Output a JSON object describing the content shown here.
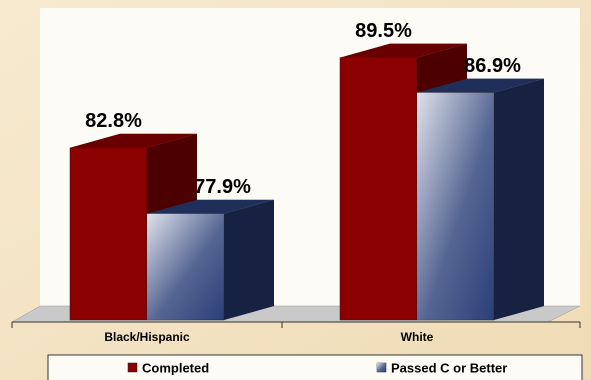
{
  "chart_data": {
    "type": "bar3d",
    "categories": [
      "Black/Hispanic",
      "White"
    ],
    "series": [
      {
        "name": "Completed",
        "color": "#8b0000",
        "values": [
          82.8,
          89.5
        ],
        "value_labels": [
          "82.8%",
          "89.5%"
        ]
      },
      {
        "name": "Passed C or Better",
        "color": "#2b3f78",
        "values": [
          77.9,
          86.9
        ],
        "value_labels": [
          "77.9%",
          "86.9%"
        ]
      }
    ],
    "ylim": [
      70,
      92
    ],
    "legend": "bottom"
  }
}
